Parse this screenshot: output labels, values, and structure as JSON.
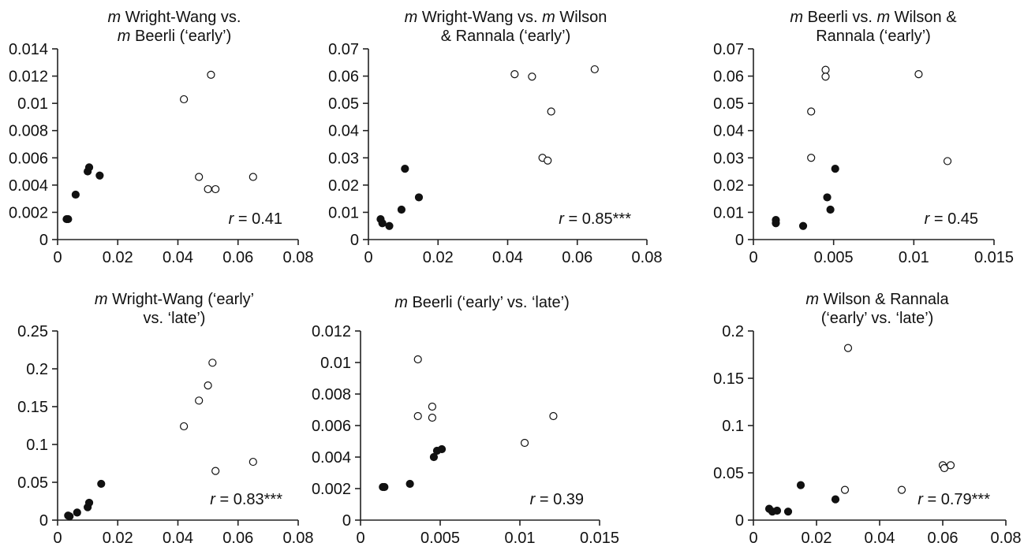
{
  "chart_data": [
    {
      "type": "scatter",
      "title_lines": [
        [
          {
            "t": "m",
            "i": true
          },
          {
            "t": " Wright-Wang vs.",
            "i": false
          }
        ],
        [
          {
            "t": "m",
            "i": true
          },
          {
            "t": " Beerli (‘early’)",
            "i": false
          }
        ]
      ],
      "xlim": [
        0,
        0.08
      ],
      "ylim": [
        0,
        0.014
      ],
      "xticks": [
        "0",
        "0.02",
        "0.04",
        "0.06",
        "0.08"
      ],
      "yticks": [
        "0",
        "0.002",
        "0.004",
        "0.006",
        "0.008",
        "0.01",
        "0.012",
        "0.014"
      ],
      "xtick_values": [
        0,
        0.02,
        0.04,
        0.06,
        0.08
      ],
      "ytick_values": [
        0,
        0.002,
        0.004,
        0.006,
        0.008,
        0.01,
        0.012,
        0.014
      ],
      "series": [
        {
          "marker": "filled",
          "points": [
            [
              0.003,
              0.0015
            ],
            [
              0.0035,
              0.0015
            ],
            [
              0.006,
              0.0033
            ],
            [
              0.01,
              0.005
            ],
            [
              0.0105,
              0.0053
            ],
            [
              0.014,
              0.0047
            ]
          ]
        },
        {
          "marker": "open",
          "points": [
            [
              0.042,
              0.0103
            ],
            [
              0.051,
              0.0121
            ],
            [
              0.047,
              0.0046
            ],
            [
              0.05,
              0.0037
            ],
            [
              0.0525,
              0.0037
            ],
            [
              0.065,
              0.0046
            ]
          ]
        }
      ],
      "stat": {
        "var": "r",
        "text": " = 0.41"
      }
    },
    {
      "type": "scatter",
      "title_lines": [
        [
          {
            "t": "m",
            "i": true
          },
          {
            "t": " Wright-Wang vs. ",
            "i": false
          },
          {
            "t": "m",
            "i": true
          },
          {
            "t": " Wilson",
            "i": false
          }
        ],
        [
          {
            "t": "& Rannala (‘early’)",
            "i": false
          }
        ]
      ],
      "xlim": [
        0,
        0.08
      ],
      "ylim": [
        0,
        0.07
      ],
      "xticks": [
        "0",
        "0.02",
        "0.04",
        "0.06",
        "0.08"
      ],
      "yticks": [
        "0",
        "0.01",
        "0.02",
        "0.03",
        "0.04",
        "0.05",
        "0.06",
        "0.07"
      ],
      "xtick_values": [
        0,
        0.02,
        0.04,
        0.06,
        0.08
      ],
      "ytick_values": [
        0,
        0.01,
        0.02,
        0.03,
        0.04,
        0.05,
        0.06,
        0.07
      ],
      "series": [
        {
          "marker": "filled",
          "points": [
            [
              0.0035,
              0.0075
            ],
            [
              0.004,
              0.006
            ],
            [
              0.006,
              0.005
            ],
            [
              0.0095,
              0.011
            ],
            [
              0.0105,
              0.026
            ],
            [
              0.0145,
              0.0155
            ]
          ]
        },
        {
          "marker": "open",
          "points": [
            [
              0.042,
              0.0607
            ],
            [
              0.047,
              0.0598
            ],
            [
              0.065,
              0.0625
            ],
            [
              0.0525,
              0.047
            ],
            [
              0.05,
              0.03
            ],
            [
              0.0515,
              0.029
            ]
          ]
        }
      ],
      "stat": {
        "var": "r",
        "text": " = 0.85***"
      }
    },
    {
      "type": "scatter",
      "title_lines": [
        [
          {
            "t": "m",
            "i": true
          },
          {
            "t": " Beerli vs. ",
            "i": false
          },
          {
            "t": "m",
            "i": true
          },
          {
            "t": " Wilson &",
            "i": false
          }
        ],
        [
          {
            "t": "Rannala (‘early’)",
            "i": false
          }
        ]
      ],
      "xlim": [
        0,
        0.015
      ],
      "ylim": [
        0,
        0.07
      ],
      "xticks": [
        "0",
        "0.005",
        "0.01",
        "0.015"
      ],
      "yticks": [
        "0",
        "0.01",
        "0.02",
        "0.03",
        "0.04",
        "0.05",
        "0.06",
        "0.07"
      ],
      "xtick_values": [
        0,
        0.005,
        0.01,
        0.015
      ],
      "ytick_values": [
        0,
        0.01,
        0.02,
        0.03,
        0.04,
        0.05,
        0.06,
        0.07
      ],
      "series": [
        {
          "marker": "filled",
          "points": [
            [
              0.0014,
              0.0072
            ],
            [
              0.0014,
              0.006
            ],
            [
              0.0031,
              0.005
            ],
            [
              0.0046,
              0.0155
            ],
            [
              0.0048,
              0.011
            ],
            [
              0.0051,
              0.026
            ]
          ]
        },
        {
          "marker": "open",
          "points": [
            [
              0.0045,
              0.0623
            ],
            [
              0.0045,
              0.0598
            ],
            [
              0.0036,
              0.047
            ],
            [
              0.0036,
              0.03
            ],
            [
              0.0103,
              0.0607
            ],
            [
              0.0121,
              0.0288
            ]
          ]
        }
      ],
      "stat": {
        "var": "r",
        "text": " = 0.45"
      }
    },
    {
      "type": "scatter",
      "title_lines": [
        [
          {
            "t": "m",
            "i": true
          },
          {
            "t": " Wright-Wang (‘early’",
            "i": false
          }
        ],
        [
          {
            "t": "vs. ‘late’)",
            "i": false
          }
        ]
      ],
      "xlim": [
        0,
        0.08
      ],
      "ylim": [
        0,
        0.25
      ],
      "xticks": [
        "0",
        "0.02",
        "0.04",
        "0.06",
        "0.08"
      ],
      "yticks": [
        "0",
        "0.05",
        "0.1",
        "0.15",
        "0.2",
        "0.25"
      ],
      "xtick_values": [
        0,
        0.02,
        0.04,
        0.06,
        0.08
      ],
      "ytick_values": [
        0,
        0.05,
        0.1,
        0.15,
        0.2,
        0.25
      ],
      "series": [
        {
          "marker": "filled",
          "points": [
            [
              0.0035,
              0.006
            ],
            [
              0.004,
              0.005
            ],
            [
              0.0065,
              0.01
            ],
            [
              0.01,
              0.017
            ],
            [
              0.0105,
              0.023
            ],
            [
              0.0145,
              0.048
            ]
          ]
        },
        {
          "marker": "open",
          "points": [
            [
              0.042,
              0.124
            ],
            [
              0.047,
              0.158
            ],
            [
              0.05,
              0.178
            ],
            [
              0.0515,
              0.208
            ],
            [
              0.0525,
              0.065
            ],
            [
              0.065,
              0.077
            ]
          ]
        }
      ],
      "stat": {
        "var": "r",
        "text": " = 0.83***"
      }
    },
    {
      "type": "scatter",
      "title_lines": [
        [
          {
            "t": "m",
            "i": true
          },
          {
            "t": " Beerli (‘early’ vs. ‘late’)",
            "i": false
          }
        ]
      ],
      "xlim": [
        0,
        0.015
      ],
      "ylim": [
        0,
        0.012
      ],
      "xticks": [
        "0",
        "0.005",
        "0.01",
        "0.015"
      ],
      "yticks": [
        "0",
        "0.002",
        "0.004",
        "0.006",
        "0.008",
        "0.01",
        "0.012"
      ],
      "xtick_values": [
        0,
        0.005,
        0.01,
        0.015
      ],
      "ytick_values": [
        0,
        0.002,
        0.004,
        0.006,
        0.008,
        0.01,
        0.012
      ],
      "series": [
        {
          "marker": "filled",
          "points": [
            [
              0.0014,
              0.0021
            ],
            [
              0.0015,
              0.0021
            ],
            [
              0.0031,
              0.0023
            ],
            [
              0.0046,
              0.004
            ],
            [
              0.0048,
              0.0044
            ],
            [
              0.0051,
              0.0045
            ]
          ]
        },
        {
          "marker": "open",
          "points": [
            [
              0.0036,
              0.0102
            ],
            [
              0.0036,
              0.0066
            ],
            [
              0.0045,
              0.0072
            ],
            [
              0.0045,
              0.0065
            ],
            [
              0.0103,
              0.0049
            ],
            [
              0.0121,
              0.0066
            ]
          ]
        }
      ],
      "stat": {
        "var": "r",
        "text": " = 0.39"
      }
    },
    {
      "type": "scatter",
      "title_lines": [
        [
          {
            "t": "m",
            "i": true
          },
          {
            "t": " Wilson & Rannala",
            "i": false
          }
        ],
        [
          {
            "t": "(‘early’ vs. ‘late’)",
            "i": false
          }
        ]
      ],
      "xlim": [
        0,
        0.08
      ],
      "ylim": [
        0,
        0.2
      ],
      "xticks": [
        "0",
        "0.02",
        "0.04",
        "0.06",
        "0.08"
      ],
      "yticks": [
        "0",
        "0.05",
        "0.1",
        "0.15",
        "0.2"
      ],
      "xtick_values": [
        0,
        0.02,
        0.04,
        0.06,
        0.08
      ],
      "ytick_values": [
        0,
        0.05,
        0.1,
        0.15,
        0.2
      ],
      "series": [
        {
          "marker": "filled",
          "points": [
            [
              0.005,
              0.012
            ],
            [
              0.006,
              0.009
            ],
            [
              0.0075,
              0.01
            ],
            [
              0.011,
              0.009
            ],
            [
              0.015,
              0.037
            ],
            [
              0.026,
              0.022
            ]
          ]
        },
        {
          "marker": "open",
          "points": [
            [
              0.029,
              0.032
            ],
            [
              0.03,
              0.182
            ],
            [
              0.047,
              0.032
            ],
            [
              0.06,
              0.058
            ],
            [
              0.0605,
              0.055
            ],
            [
              0.0625,
              0.058
            ]
          ]
        }
      ],
      "stat": {
        "var": "r",
        "text": " = 0.79***"
      }
    }
  ]
}
